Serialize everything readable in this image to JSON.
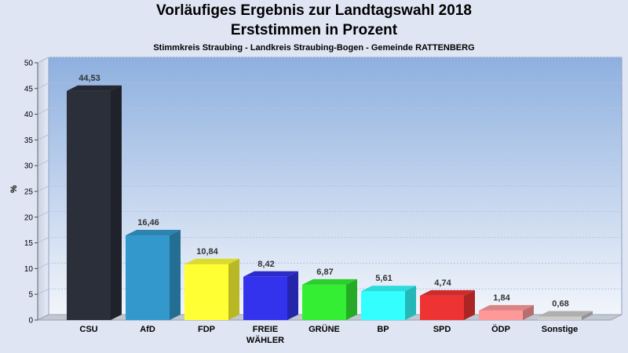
{
  "title": "Vorläufiges Ergebnis zur Landtagswahl 2018",
  "subtitle": "Erststimmen in Prozent",
  "caption": "Stimmkreis Straubing - Landkreis Straubing-Bogen - Gemeinde RATTENBERG",
  "chart_data": {
    "type": "bar",
    "categories": [
      "CSU",
      "AfD",
      "FDP",
      "FREIE WÄHLER",
      "GRÜNE",
      "BP",
      "SPD",
      "ÖDP",
      "Sonstige"
    ],
    "category_lines": [
      [
        "CSU"
      ],
      [
        "AfD"
      ],
      [
        "FDP"
      ],
      [
        "FREIE",
        "WÄHLER"
      ],
      [
        "GRÜNE"
      ],
      [
        "BP"
      ],
      [
        "SPD"
      ],
      [
        "ÖDP"
      ],
      [
        "Sonstige"
      ]
    ],
    "values": [
      44.53,
      16.46,
      10.84,
      8.42,
      6.87,
      5.61,
      4.74,
      1.84,
      0.68
    ],
    "value_labels": [
      "44,53",
      "16,46",
      "10,84",
      "8,42",
      "6,87",
      "5,61",
      "4,74",
      "1,84",
      "0,68"
    ],
    "colors": [
      "#2b2f3a",
      "#3399cc",
      "#ffff33",
      "#3333ee",
      "#33ee33",
      "#33ffff",
      "#ee3333",
      "#ff9999",
      "#cccccc"
    ],
    "ylabel": "%",
    "ylim": [
      0,
      50
    ],
    "yticks": [
      0,
      5,
      10,
      15,
      20,
      25,
      30,
      35,
      40,
      45,
      50
    ],
    "grid": true,
    "legend": "none"
  }
}
